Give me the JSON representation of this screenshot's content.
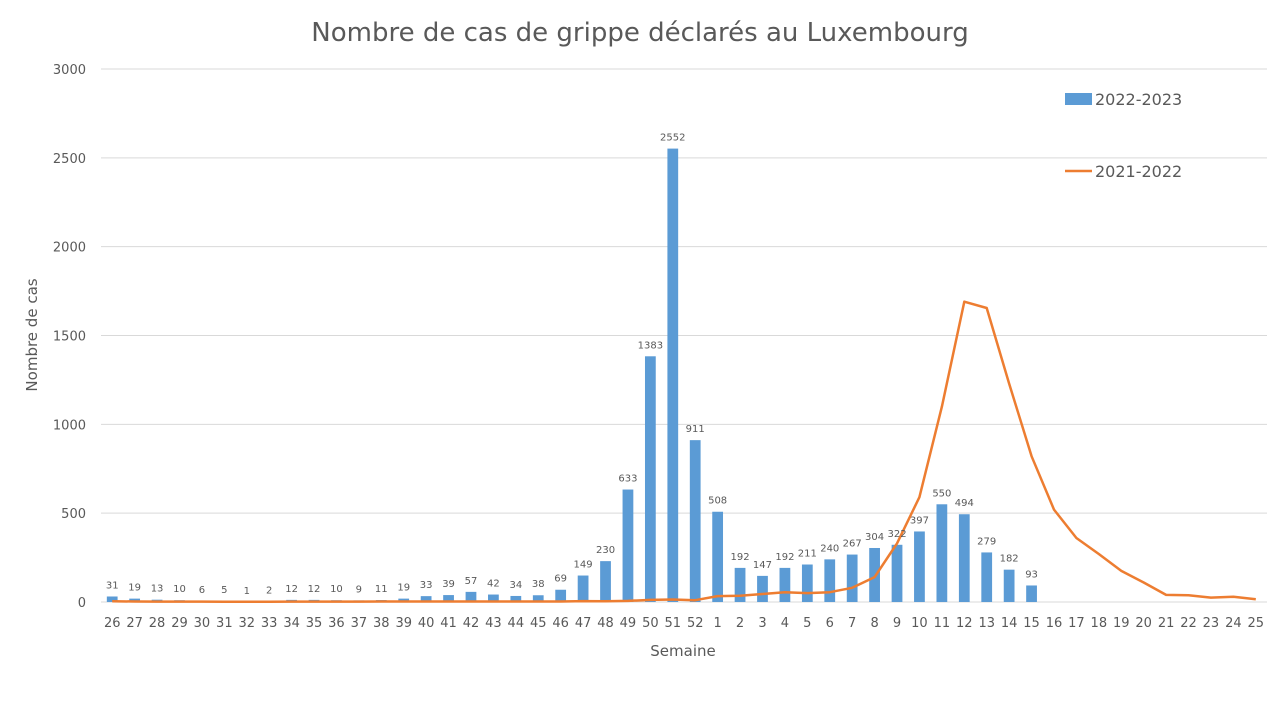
{
  "chart_data": {
    "type": "bar",
    "title": "Nombre de cas de grippe déclarés au Luxembourg",
    "xlabel": "Semaine",
    "ylabel": "Nombre de cas",
    "ylim": [
      0,
      3000
    ],
    "yticks": [
      "0",
      "500",
      "1000",
      "1500",
      "2000",
      "2500",
      "3000"
    ],
    "grid": true,
    "legend_position": "top-right",
    "categories": [
      "26",
      "27",
      "28",
      "29",
      "30",
      "31",
      "32",
      "33",
      "34",
      "35",
      "36",
      "37",
      "38",
      "39",
      "40",
      "41",
      "42",
      "43",
      "44",
      "45",
      "46",
      "47",
      "48",
      "49",
      "50",
      "51",
      "52",
      "1",
      "2",
      "3",
      "4",
      "5",
      "6",
      "7",
      "8",
      "9",
      "10",
      "11",
      "12",
      "13",
      "14",
      "15",
      "16",
      "17",
      "18",
      "19",
      "20",
      "21",
      "22",
      "23",
      "24",
      "25"
    ],
    "series": [
      {
        "name": "2022-2023",
        "kind": "bar",
        "color": "#5b9bd5",
        "values": [
          31,
          19,
          13,
          10,
          6,
          5,
          1,
          2,
          12,
          12,
          10,
          9,
          11,
          19,
          33,
          39,
          57,
          42,
          34,
          38,
          69,
          149,
          230,
          633,
          1383,
          2552,
          911,
          508,
          192,
          147,
          192,
          211,
          240,
          267,
          304,
          322,
          397,
          550,
          494,
          279,
          182,
          93,
          null,
          null,
          null,
          null,
          null,
          null,
          null,
          null,
          null,
          null
        ],
        "labels": [
          "31",
          "19",
          "13",
          "10",
          "6",
          "5",
          "1",
          "2",
          "12",
          "12",
          "10",
          "9",
          "11",
          "19",
          "33",
          "39",
          "57",
          "42",
          "34",
          "38",
          "69",
          "149",
          "230",
          "633",
          "1383",
          "2552",
          "911",
          "508",
          "192",
          "147",
          "192",
          "211",
          "240",
          "267",
          "304",
          "322",
          "397",
          "550",
          "494",
          "279",
          "182",
          "93",
          "",
          "",
          "",
          "",
          "",
          "",
          "",
          "",
          "",
          ""
        ]
      },
      {
        "name": "2021-2022",
        "kind": "line",
        "color": "#ed7d31",
        "values": [
          4,
          3,
          2,
          2,
          2,
          1,
          1,
          1,
          2,
          2,
          2,
          2,
          3,
          3,
          3,
          3,
          3,
          3,
          3,
          3,
          3,
          5,
          4,
          6,
          12,
          14,
          10,
          33,
          35,
          45,
          55,
          50,
          55,
          80,
          140,
          330,
          590,
          1100,
          1690,
          1655,
          1230,
          820,
          520,
          360,
          270,
          175,
          110,
          40,
          38,
          25,
          30,
          15
        ]
      }
    ]
  }
}
